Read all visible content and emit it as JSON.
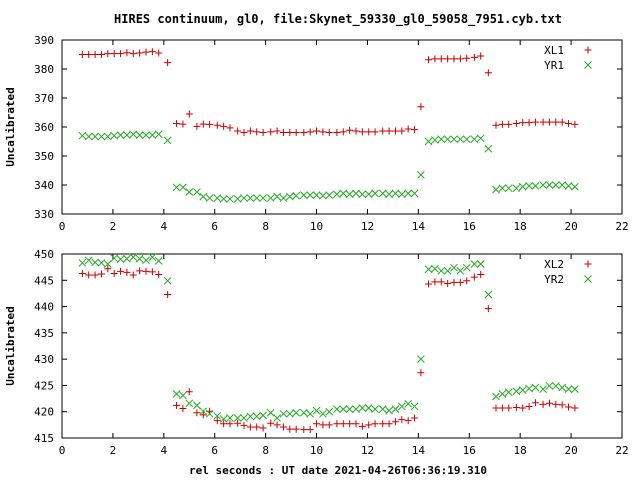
{
  "title": "HIRES continuum, gl0, file:Skynet_59330_gl0_59058_7951.cyb.txt",
  "xlabel": "rel seconds : UT date 2021-04-26T06:36:19.310",
  "colors": {
    "red": "#cc0000",
    "green": "#22aa22",
    "axis": "#000000"
  },
  "chart_data": [
    {
      "type": "scatter",
      "ylabel": "Uncalibrated",
      "xlim": [
        0,
        22
      ],
      "ylim": [
        330,
        390
      ],
      "xticks": [
        0,
        2,
        4,
        6,
        8,
        10,
        12,
        14,
        16,
        18,
        20,
        22
      ],
      "yticks": [
        330,
        340,
        350,
        360,
        370,
        380,
        390
      ],
      "legend_position": "top-right",
      "series": [
        {
          "name": "XL1",
          "marker": "plus",
          "color": "#cc0000",
          "x": [
            0.8,
            1.05,
            1.3,
            1.55,
            1.8,
            2.05,
            2.3,
            2.55,
            2.8,
            3.05,
            3.3,
            3.55,
            3.8,
            4.15,
            4.5,
            4.75,
            5.0,
            5.3,
            5.55,
            5.8,
            6.1,
            6.35,
            6.6,
            6.9,
            7.15,
            7.4,
            7.65,
            7.9,
            8.2,
            8.45,
            8.7,
            8.95,
            9.2,
            9.5,
            9.75,
            10.0,
            10.25,
            10.5,
            10.8,
            11.05,
            11.3,
            11.55,
            11.8,
            12.05,
            12.3,
            12.6,
            12.85,
            13.1,
            13.35,
            13.6,
            13.85,
            14.1,
            14.4,
            14.65,
            14.9,
            15.15,
            15.4,
            15.65,
            15.9,
            16.2,
            16.45,
            16.75,
            17.05,
            17.3,
            17.55,
            17.85,
            18.1,
            18.35,
            18.6,
            18.9,
            19.15,
            19.4,
            19.65,
            19.9,
            20.15
          ],
          "y": [
            385,
            385,
            385,
            385,
            385.3,
            385.3,
            385.3,
            385.6,
            385.3,
            385.5,
            385.8,
            386,
            385.5,
            382.2,
            361.2,
            361,
            364.5,
            360.2,
            361,
            360.9,
            360.6,
            360.2,
            359.7,
            358.6,
            358.1,
            358.6,
            358.3,
            358.1,
            358.3,
            358.6,
            358.1,
            358.1,
            358.1,
            358.1,
            358.3,
            358.6,
            358.3,
            358.1,
            358.1,
            358.3,
            358.9,
            358.6,
            358.3,
            358.3,
            358.3,
            358.6,
            358.6,
            358.6,
            358.6,
            359.3,
            359.1,
            367,
            383.2,
            383.5,
            383.5,
            383.5,
            383.5,
            383.5,
            383.7,
            384,
            384.5,
            378.7,
            360.6,
            360.9,
            360.9,
            361.2,
            361.5,
            361.5,
            361.7,
            361.7,
            361.7,
            361.7,
            361.7,
            361.2,
            360.9
          ]
        },
        {
          "name": "YR1",
          "marker": "cross",
          "color": "#22aa22",
          "x": [
            0.8,
            1.05,
            1.3,
            1.55,
            1.8,
            2.05,
            2.3,
            2.55,
            2.8,
            3.05,
            3.3,
            3.55,
            3.8,
            4.15,
            4.5,
            4.75,
            5.0,
            5.3,
            5.55,
            5.8,
            6.1,
            6.35,
            6.6,
            6.9,
            7.15,
            7.4,
            7.65,
            7.9,
            8.2,
            8.45,
            8.7,
            8.95,
            9.2,
            9.5,
            9.75,
            10.0,
            10.25,
            10.5,
            10.8,
            11.05,
            11.3,
            11.55,
            11.8,
            12.05,
            12.3,
            12.6,
            12.85,
            13.1,
            13.35,
            13.6,
            13.85,
            14.1,
            14.4,
            14.65,
            14.9,
            15.15,
            15.4,
            15.65,
            15.9,
            16.2,
            16.45,
            16.75,
            17.05,
            17.3,
            17.55,
            17.85,
            18.1,
            18.35,
            18.6,
            18.9,
            19.15,
            19.4,
            19.65,
            19.9,
            20.15
          ],
          "y": [
            357,
            356.7,
            356.7,
            356.7,
            356.7,
            357,
            357.2,
            357.2,
            357.5,
            357.2,
            357.2,
            357.2,
            357.5,
            355.4,
            339.2,
            339.2,
            337.6,
            337.6,
            336,
            335.5,
            335.5,
            335.2,
            335.2,
            335.2,
            335.5,
            335.5,
            335.5,
            335.5,
            335.5,
            336,
            335.5,
            336,
            336.3,
            336.5,
            336.5,
            336.5,
            336.3,
            336.5,
            336.8,
            337.1,
            336.8,
            337.1,
            336.8,
            336.8,
            337.1,
            337.1,
            336.8,
            337.1,
            336.8,
            337.1,
            337.1,
            343.5,
            355,
            355.5,
            355.8,
            355.8,
            355.8,
            355.8,
            355.8,
            355.8,
            356.1,
            352.5,
            338.4,
            338.9,
            338.9,
            338.9,
            339.4,
            339.7,
            339.7,
            340,
            340,
            340,
            340,
            339.7,
            339.4
          ]
        }
      ]
    },
    {
      "type": "scatter",
      "ylabel": "Uncalibrated",
      "xlim": [
        0,
        22
      ],
      "ylim": [
        415,
        450
      ],
      "xticks": [
        0,
        2,
        4,
        6,
        8,
        10,
        12,
        14,
        16,
        18,
        20,
        22
      ],
      "yticks": [
        415,
        420,
        425,
        430,
        435,
        440,
        445,
        450
      ],
      "legend_position": "top-right",
      "series": [
        {
          "name": "XL2",
          "marker": "plus",
          "color": "#cc0000",
          "x": [
            0.8,
            1.05,
            1.3,
            1.55,
            1.8,
            2.05,
            2.3,
            2.55,
            2.8,
            3.05,
            3.3,
            3.55,
            3.8,
            4.15,
            4.5,
            4.75,
            5.0,
            5.3,
            5.55,
            5.8,
            6.1,
            6.35,
            6.6,
            6.9,
            7.15,
            7.4,
            7.65,
            7.9,
            8.2,
            8.45,
            8.7,
            8.95,
            9.2,
            9.5,
            9.75,
            10.0,
            10.25,
            10.5,
            10.8,
            11.05,
            11.3,
            11.55,
            11.8,
            12.05,
            12.3,
            12.6,
            12.85,
            13.1,
            13.35,
            13.6,
            13.85,
            14.1,
            14.4,
            14.65,
            14.9,
            15.15,
            15.4,
            15.65,
            15.9,
            16.2,
            16.45,
            16.75,
            17.05,
            17.3,
            17.55,
            17.85,
            18.1,
            18.35,
            18.6,
            18.9,
            19.15,
            19.4,
            19.65,
            19.9,
            20.15
          ],
          "y": [
            446.3,
            446,
            446,
            446.2,
            447.2,
            446.3,
            446.7,
            446.5,
            446,
            446.8,
            446.7,
            446.6,
            446.1,
            442.3,
            421.2,
            420.6,
            423.8,
            419.8,
            419.4,
            420.1,
            418.3,
            417.7,
            417.7,
            417.8,
            417.4,
            417.1,
            417.1,
            416.9,
            417.8,
            417.5,
            417.1,
            416.7,
            416.7,
            416.6,
            416.6,
            417.7,
            417.5,
            417.5,
            417.7,
            417.7,
            417.7,
            417.7,
            417.2,
            417.5,
            417.7,
            417.7,
            417.7,
            418.1,
            418.5,
            418.3,
            418.8,
            427.4,
            444.3,
            444.7,
            444.7,
            444.4,
            444.6,
            444.6,
            444.9,
            445.6,
            446.1,
            439.6,
            420.7,
            420.7,
            420.7,
            420.8,
            420.7,
            421,
            421.7,
            421.4,
            421.6,
            421.4,
            421.3,
            420.9,
            420.7
          ]
        },
        {
          "name": "YR2",
          "marker": "cross",
          "color": "#22aa22",
          "x": [
            0.8,
            1.05,
            1.3,
            1.55,
            1.8,
            2.05,
            2.3,
            2.55,
            2.8,
            3.05,
            3.3,
            3.55,
            3.8,
            4.15,
            4.5,
            4.75,
            5.0,
            5.3,
            5.55,
            5.8,
            6.1,
            6.35,
            6.6,
            6.9,
            7.15,
            7.4,
            7.65,
            7.9,
            8.2,
            8.45,
            8.7,
            8.95,
            9.2,
            9.5,
            9.75,
            10.0,
            10.25,
            10.5,
            10.8,
            11.05,
            11.3,
            11.55,
            11.8,
            12.05,
            12.3,
            12.6,
            12.85,
            13.1,
            13.35,
            13.6,
            13.85,
            14.1,
            14.4,
            14.65,
            14.9,
            15.15,
            15.4,
            15.65,
            15.9,
            16.2,
            16.45,
            16.75,
            17.05,
            17.3,
            17.55,
            17.85,
            18.1,
            18.35,
            18.6,
            18.9,
            19.15,
            19.4,
            19.65,
            19.9,
            20.15
          ],
          "y": [
            448.3,
            448.8,
            448.4,
            448.3,
            448.1,
            449.2,
            449,
            449.1,
            449.4,
            449.1,
            448.8,
            449.4,
            448.7,
            444.9,
            423.4,
            423.1,
            421.6,
            421.2,
            420.1,
            419.6,
            419.2,
            418.6,
            418.8,
            418.8,
            418.8,
            419.1,
            419.1,
            419.3,
            419.8,
            418.8,
            419.6,
            419.6,
            419.8,
            419.8,
            419.6,
            420.2,
            419.6,
            420,
            420.5,
            420.5,
            420.5,
            420.5,
            420.7,
            420.7,
            420.5,
            420.5,
            420.2,
            420.5,
            421,
            421.5,
            421,
            430,
            447.1,
            447.2,
            446.8,
            446.8,
            447.4,
            446.8,
            447.4,
            448.1,
            448.1,
            442.3,
            422.9,
            423.4,
            423.7,
            423.9,
            424.1,
            424.4,
            424.6,
            424.3,
            424.9,
            424.9,
            424.6,
            424.3,
            424.3
          ]
        }
      ]
    }
  ]
}
